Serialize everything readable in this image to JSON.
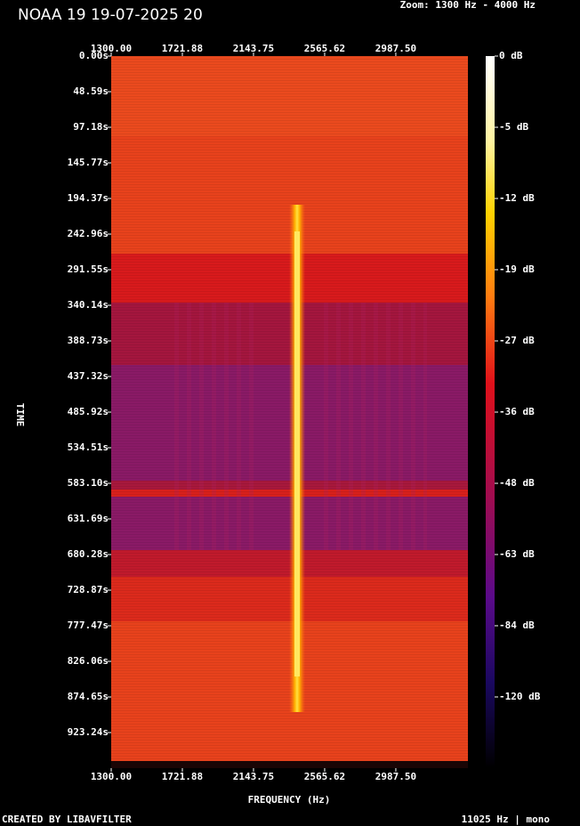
{
  "chart_data": {
    "type": "spectrogram",
    "title": "NOAA 19 19-07-2025 20",
    "subtitle": "Zoom: 1300 Hz - 4000 Hz",
    "x_label": "FREQUENCY (Hz)",
    "y_label": "TIME",
    "footer_left": "CREATED BY LIBAVFILTER",
    "footer_right": "11025 Hz | mono",
    "xlim": [
      1300,
      3415
    ],
    "xticks": [
      {
        "value": 1300,
        "label": "1300.00"
      },
      {
        "value": 1721.88,
        "label": "1721.88"
      },
      {
        "value": 2143.75,
        "label": "2143.75"
      },
      {
        "value": 2565.62,
        "label": "2565.62"
      },
      {
        "value": 2987.5,
        "label": "2987.50"
      }
    ],
    "ylim": [
      0,
      971.8
    ],
    "yticks": [
      {
        "value": 0,
        "label": "0.00s"
      },
      {
        "value": 48.59,
        "label": "48.59s"
      },
      {
        "value": 97.18,
        "label": "97.18s"
      },
      {
        "value": 145.77,
        "label": "145.77s"
      },
      {
        "value": 194.37,
        "label": "194.37s"
      },
      {
        "value": 242.96,
        "label": "242.96s"
      },
      {
        "value": 291.55,
        "label": "291.55s"
      },
      {
        "value": 340.14,
        "label": "340.14s"
      },
      {
        "value": 388.73,
        "label": "388.73s"
      },
      {
        "value": 437.32,
        "label": "437.32s"
      },
      {
        "value": 485.92,
        "label": "485.92s"
      },
      {
        "value": 534.51,
        "label": "534.51s"
      },
      {
        "value": 583.1,
        "label": "583.10s"
      },
      {
        "value": 631.69,
        "label": "631.69s"
      },
      {
        "value": 680.28,
        "label": "680.28s"
      },
      {
        "value": 728.87,
        "label": "728.87s"
      },
      {
        "value": 777.47,
        "label": "777.47s"
      },
      {
        "value": 826.06,
        "label": "826.06s"
      },
      {
        "value": 874.65,
        "label": "874.65s"
      },
      {
        "value": 923.24,
        "label": "923.24s"
      }
    ],
    "colorbar_ticks": [
      {
        "value": 0,
        "label": "0 dB"
      },
      {
        "value": -5,
        "label": "-5 dB"
      },
      {
        "value": -12,
        "label": "-12 dB"
      },
      {
        "value": -19,
        "label": "-19 dB"
      },
      {
        "value": -27,
        "label": "-27 dB"
      },
      {
        "value": -36,
        "label": "-36 dB"
      },
      {
        "value": -48,
        "label": "-48 dB"
      },
      {
        "value": -63,
        "label": "-63 dB"
      },
      {
        "value": -84,
        "label": "-84 dB"
      },
      {
        "value": -120,
        "label": "-120 dB"
      }
    ]
  }
}
